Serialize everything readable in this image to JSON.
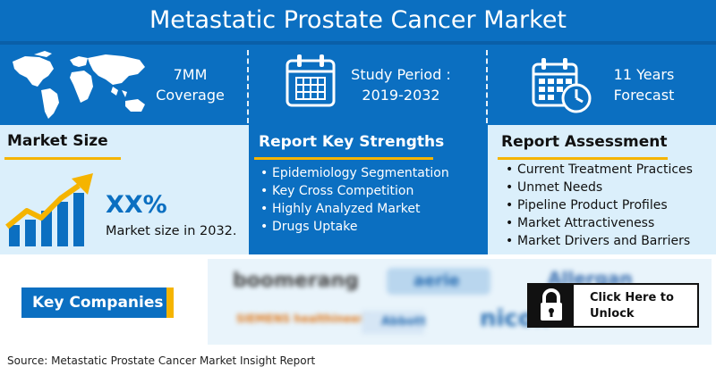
{
  "header": {
    "title": "Metastatic Prostate Cancer Market"
  },
  "coverage": {
    "line1": "7MM",
    "line2": "Coverage"
  },
  "study_period": {
    "line1": "Study Period :",
    "line2": "2019-2032"
  },
  "forecast": {
    "line1": "11 Years",
    "line2": "Forecast"
  },
  "market_size": {
    "title": "Market Size",
    "value": "XX%",
    "caption": "Market size in 2032."
  },
  "key_strengths": {
    "title": "Report Key Strengths",
    "items": [
      "Epidemiology Segmentation",
      "Key Cross Competition",
      "Highly Analyzed Market",
      "Drugs Uptake"
    ]
  },
  "assessment": {
    "title": "Report Assessment",
    "items": [
      "Current Treatment Practices",
      "Unmet Needs",
      "Pipeline Product Profiles",
      "Market Attractiveness",
      "Market Drivers and Barriers"
    ]
  },
  "companies": {
    "label": "Key Companies",
    "blurred_logos": [
      "boomerang",
      "aerie",
      "Allergan",
      "SIEMENS healthineers",
      "Abbott",
      "nicox"
    ]
  },
  "unlock": {
    "label": "Click Here to Unlock"
  },
  "source": "Source: Metastatic Prostate Cancer Market Insight Report",
  "colors": {
    "primary_blue": "#0b6fc1",
    "light_blue": "#dbeffb",
    "accent_yellow": "#f5b400",
    "dark": "#111111"
  }
}
